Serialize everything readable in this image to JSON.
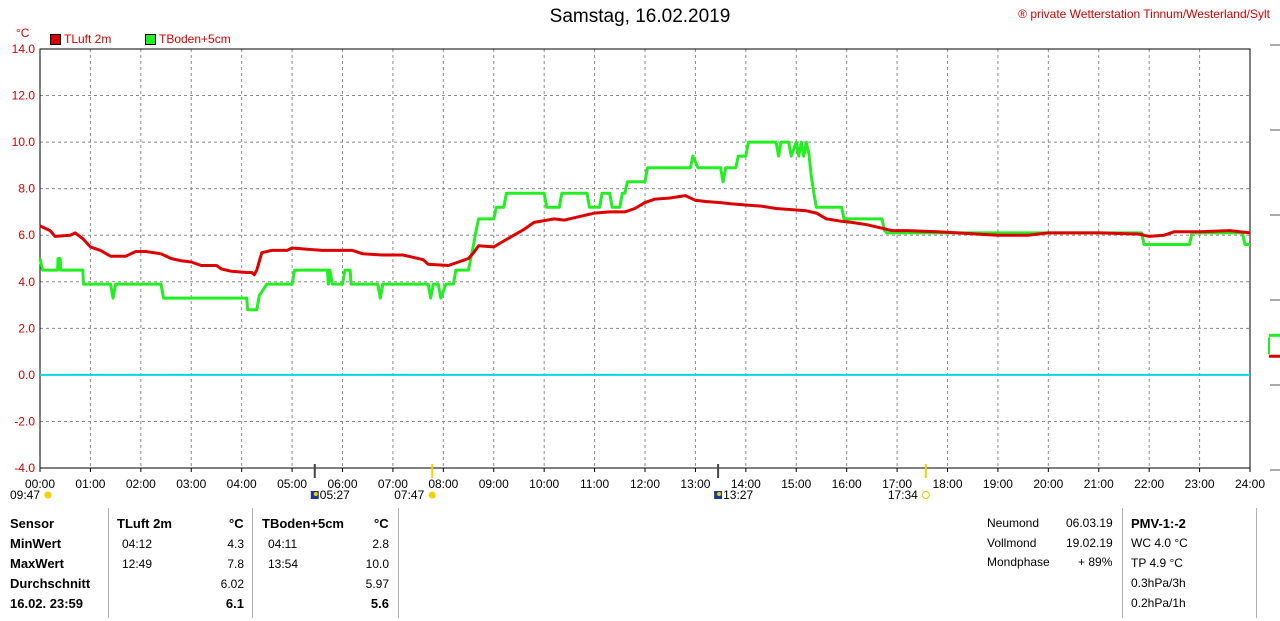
{
  "header": {
    "title": "Samstag, 16.02.2019",
    "copyright": "® private Wetterstation Tinnum/Westerland/Sylt",
    "unit": "°C"
  },
  "chart_data": {
    "type": "line",
    "title": "Samstag, 16.02.2019",
    "ylabel": "°C",
    "ylim": [
      -4,
      14
    ],
    "yticks": [
      "14.0",
      "12.0",
      "10.0",
      "8.0",
      "6.0",
      "4.0",
      "2.0",
      "0.0",
      "-2.0",
      "-4.0"
    ],
    "xlim": [
      0,
      24
    ],
    "xticks": [
      "00:00",
      "01:00",
      "02:00",
      "03:00",
      "04:00",
      "05:00",
      "06:00",
      "07:00",
      "08:00",
      "09:00",
      "10:00",
      "11:00",
      "12:00",
      "13:00",
      "14:00",
      "15:00",
      "16:00",
      "17:00",
      "18:00",
      "19:00",
      "20:00",
      "21:00",
      "22:00",
      "23:00",
      "24:00"
    ],
    "grid": true,
    "legend": "top-left",
    "zero_line_color": "#00d8e8",
    "series": [
      {
        "name": "TLuft 2m",
        "color": "#dd0000",
        "points": [
          [
            0,
            6.4
          ],
          [
            0.2,
            6.2
          ],
          [
            0.3,
            5.95
          ],
          [
            0.6,
            6.0
          ],
          [
            0.7,
            6.1
          ],
          [
            0.85,
            5.85
          ],
          [
            1.0,
            5.5
          ],
          [
            1.2,
            5.35
          ],
          [
            1.4,
            5.1
          ],
          [
            1.7,
            5.1
          ],
          [
            1.9,
            5.3
          ],
          [
            2.1,
            5.3
          ],
          [
            2.4,
            5.2
          ],
          [
            2.6,
            5.0
          ],
          [
            2.8,
            4.9
          ],
          [
            3.0,
            4.85
          ],
          [
            3.2,
            4.7
          ],
          [
            3.5,
            4.7
          ],
          [
            3.6,
            4.55
          ],
          [
            3.8,
            4.45
          ],
          [
            4.1,
            4.4
          ],
          [
            4.2,
            4.4
          ],
          [
            4.25,
            4.3
          ],
          [
            4.3,
            4.5
          ],
          [
            4.4,
            5.25
          ],
          [
            4.6,
            5.35
          ],
          [
            4.9,
            5.35
          ],
          [
            5.0,
            5.45
          ],
          [
            5.3,
            5.4
          ],
          [
            5.6,
            5.35
          ],
          [
            6.2,
            5.35
          ],
          [
            6.4,
            5.2
          ],
          [
            6.8,
            5.15
          ],
          [
            7.2,
            5.15
          ],
          [
            7.4,
            5.05
          ],
          [
            7.6,
            4.95
          ],
          [
            7.7,
            4.75
          ],
          [
            8.1,
            4.7
          ],
          [
            8.3,
            4.85
          ],
          [
            8.5,
            5.0
          ],
          [
            8.6,
            5.25
          ],
          [
            8.7,
            5.55
          ],
          [
            9.0,
            5.5
          ],
          [
            9.2,
            5.75
          ],
          [
            9.4,
            6.0
          ],
          [
            9.6,
            6.25
          ],
          [
            9.8,
            6.55
          ],
          [
            10.2,
            6.7
          ],
          [
            10.4,
            6.65
          ],
          [
            10.7,
            6.8
          ],
          [
            11.0,
            6.95
          ],
          [
            11.3,
            7.0
          ],
          [
            11.6,
            7.0
          ],
          [
            11.8,
            7.15
          ],
          [
            12.0,
            7.4
          ],
          [
            12.2,
            7.55
          ],
          [
            12.5,
            7.6
          ],
          [
            12.8,
            7.7
          ],
          [
            13.0,
            7.5
          ],
          [
            13.2,
            7.45
          ],
          [
            13.5,
            7.4
          ],
          [
            13.7,
            7.35
          ],
          [
            14.0,
            7.3
          ],
          [
            14.3,
            7.25
          ],
          [
            14.6,
            7.15
          ],
          [
            14.9,
            7.1
          ],
          [
            15.2,
            7.05
          ],
          [
            15.4,
            6.95
          ],
          [
            15.6,
            6.7
          ],
          [
            15.9,
            6.6
          ],
          [
            16.1,
            6.55
          ],
          [
            16.4,
            6.45
          ],
          [
            16.7,
            6.3
          ],
          [
            16.9,
            6.2
          ],
          [
            17.2,
            6.2
          ],
          [
            17.8,
            6.15
          ],
          [
            18.2,
            6.1
          ],
          [
            18.6,
            6.05
          ],
          [
            19.0,
            6.0
          ],
          [
            19.6,
            6.0
          ],
          [
            20.0,
            6.1
          ],
          [
            21.0,
            6.1
          ],
          [
            21.8,
            6.05
          ],
          [
            22.0,
            5.95
          ],
          [
            22.3,
            6.0
          ],
          [
            22.5,
            6.15
          ],
          [
            23.0,
            6.15
          ],
          [
            23.6,
            6.2
          ],
          [
            24.0,
            6.1
          ]
        ]
      },
      {
        "name": "TBoden+5cm",
        "color": "#22ee22",
        "points": [
          [
            0,
            5.0
          ],
          [
            0.05,
            4.5
          ],
          [
            0.35,
            4.5
          ],
          [
            0.36,
            5.0
          ],
          [
            0.4,
            5.0
          ],
          [
            0.41,
            4.5
          ],
          [
            0.85,
            4.5
          ],
          [
            0.86,
            3.9
          ],
          [
            1.4,
            3.9
          ],
          [
            1.45,
            3.3
          ],
          [
            1.5,
            3.9
          ],
          [
            2.4,
            3.9
          ],
          [
            2.45,
            3.3
          ],
          [
            4.1,
            3.3
          ],
          [
            4.12,
            2.8
          ],
          [
            4.3,
            2.8
          ],
          [
            4.35,
            3.4
          ],
          [
            4.5,
            3.9
          ],
          [
            5.0,
            3.9
          ],
          [
            5.05,
            4.5
          ],
          [
            5.7,
            4.5
          ],
          [
            5.72,
            3.9
          ],
          [
            5.75,
            4.5
          ],
          [
            5.8,
            3.9
          ],
          [
            6.0,
            3.9
          ],
          [
            6.05,
            4.5
          ],
          [
            6.15,
            4.5
          ],
          [
            6.17,
            3.9
          ],
          [
            6.7,
            3.9
          ],
          [
            6.75,
            3.3
          ],
          [
            6.8,
            3.9
          ],
          [
            7.7,
            3.9
          ],
          [
            7.75,
            3.3
          ],
          [
            7.8,
            3.9
          ],
          [
            7.9,
            3.9
          ],
          [
            7.95,
            3.3
          ],
          [
            8.05,
            3.9
          ],
          [
            8.2,
            3.9
          ],
          [
            8.25,
            4.5
          ],
          [
            8.5,
            4.5
          ],
          [
            8.6,
            5.6
          ],
          [
            8.65,
            6.2
          ],
          [
            8.7,
            6.7
          ],
          [
            9.0,
            6.7
          ],
          [
            9.05,
            7.2
          ],
          [
            9.2,
            7.2
          ],
          [
            9.25,
            7.8
          ],
          [
            10.0,
            7.8
          ],
          [
            10.05,
            7.2
          ],
          [
            10.3,
            7.2
          ],
          [
            10.35,
            7.8
          ],
          [
            10.85,
            7.8
          ],
          [
            10.9,
            7.2
          ],
          [
            11.1,
            7.2
          ],
          [
            11.15,
            7.8
          ],
          [
            11.3,
            7.8
          ],
          [
            11.35,
            7.2
          ],
          [
            11.5,
            7.2
          ],
          [
            11.55,
            7.8
          ],
          [
            11.6,
            7.8
          ],
          [
            11.65,
            8.3
          ],
          [
            12.0,
            8.3
          ],
          [
            12.05,
            8.9
          ],
          [
            12.9,
            8.9
          ],
          [
            12.95,
            9.4
          ],
          [
            13.05,
            8.9
          ],
          [
            13.5,
            8.9
          ],
          [
            13.55,
            8.3
          ],
          [
            13.6,
            8.9
          ],
          [
            13.8,
            8.9
          ],
          [
            13.85,
            9.4
          ],
          [
            14.0,
            9.4
          ],
          [
            14.05,
            10.0
          ],
          [
            14.6,
            10.0
          ],
          [
            14.65,
            9.4
          ],
          [
            14.7,
            10.0
          ],
          [
            14.85,
            10.0
          ],
          [
            14.9,
            9.4
          ],
          [
            15.0,
            10.0
          ],
          [
            15.05,
            9.4
          ],
          [
            15.1,
            10.0
          ],
          [
            15.15,
            9.4
          ],
          [
            15.2,
            10.0
          ],
          [
            15.25,
            9.5
          ],
          [
            15.3,
            8.5
          ],
          [
            15.35,
            7.8
          ],
          [
            15.4,
            7.2
          ],
          [
            15.9,
            7.2
          ],
          [
            15.95,
            6.7
          ],
          [
            16.7,
            6.7
          ],
          [
            16.75,
            6.2
          ],
          [
            16.8,
            6.1
          ],
          [
            18.0,
            6.1
          ],
          [
            19.8,
            6.1
          ],
          [
            21.0,
            6.1
          ],
          [
            21.85,
            6.1
          ],
          [
            21.9,
            5.6
          ],
          [
            22.8,
            5.6
          ],
          [
            22.85,
            6.1
          ],
          [
            23.85,
            6.1
          ],
          [
            23.9,
            5.6
          ],
          [
            24.0,
            5.6
          ]
        ]
      }
    ],
    "off_chart_markers": [
      {
        "color": "#22ee22",
        "value": 1.7
      },
      {
        "color": "#dd0000",
        "value": 0.8
      }
    ]
  },
  "sun_moon_markers": [
    {
      "label": "09:47",
      "kind": "sun",
      "hour": 0
    },
    {
      "label": "05:27",
      "kind": "moon",
      "hour": 5.45
    },
    {
      "label": "07:47",
      "kind": "sun",
      "hour": 7.78
    },
    {
      "label": "13:27",
      "kind": "moon",
      "hour": 13.45
    },
    {
      "label": "17:34",
      "kind": "sunset",
      "hour": 17.57
    }
  ],
  "legend": {
    "items": [
      {
        "label": "TLuft 2m",
        "color": "#dd0000"
      },
      {
        "label": "TBoden+5cm",
        "color": "#22ee22"
      }
    ]
  },
  "stats": {
    "sensor_col": {
      "header": "Sensor",
      "min": "MinWert",
      "max": "MaxWert",
      "avg": "Durchschnitt",
      "date": "16.02. 23:59"
    },
    "tluft": {
      "header": "TLuft 2m",
      "unit": "°C",
      "min_time": "04:12",
      "min_val": "4.3",
      "max_time": "12:49",
      "max_val": "7.8",
      "avg": "6.02",
      "current": "6.1"
    },
    "tboden": {
      "header": "TBoden+5cm",
      "unit": "°C",
      "min_time": "04:11",
      "min_val": "2.8",
      "max_time": "13:54",
      "max_val": "10.0",
      "avg": "5.97",
      "current": "5.6"
    }
  },
  "moon": {
    "neumond_label": "Neumond",
    "neumond_date": "06.03.19",
    "vollmond_label": "Vollmond",
    "vollmond_date": "19.02.19",
    "phase_label": "Mondphase",
    "phase_value": "+ 89%"
  },
  "pmv": {
    "header": "PMV-1:-2",
    "wc": "WC 4.0 °C",
    "tp": "TP 4.9 °C",
    "p3h": "0.3hPa/3h",
    "p1h": "0.2hPa/1h"
  }
}
